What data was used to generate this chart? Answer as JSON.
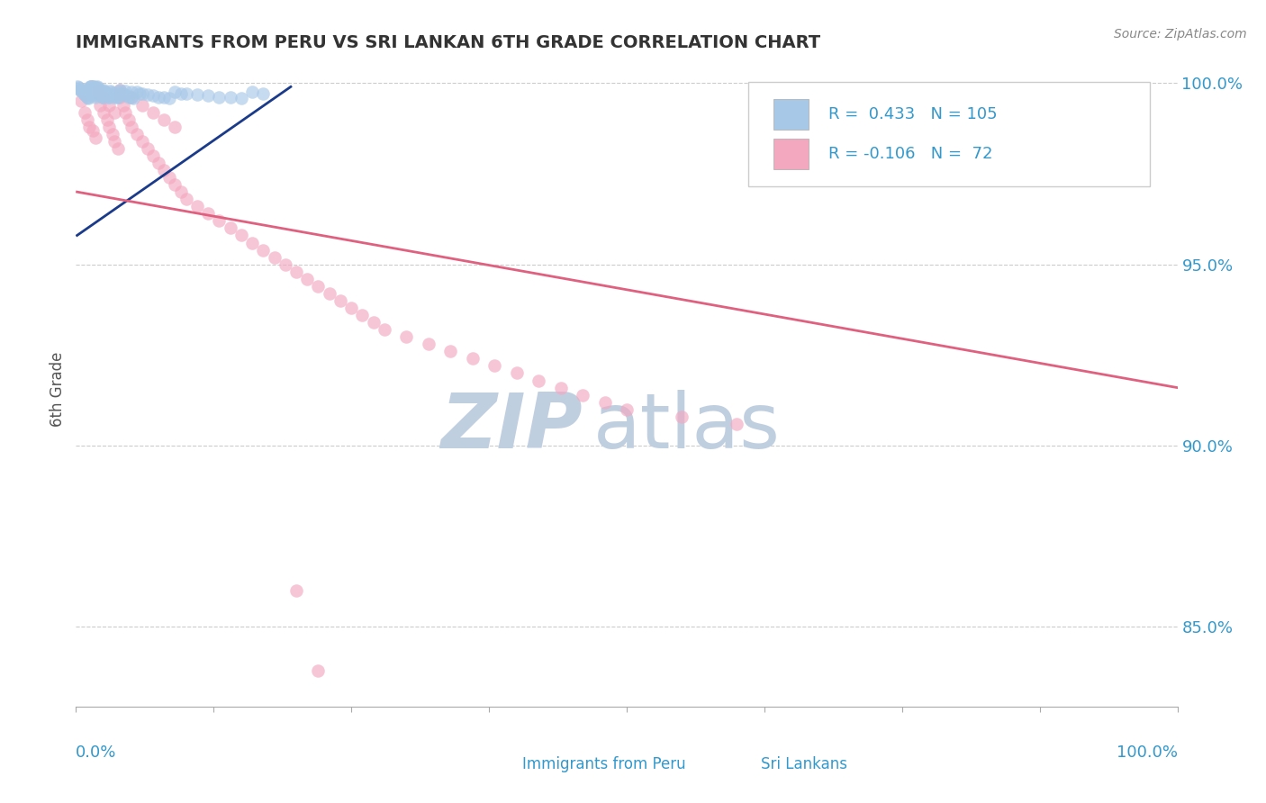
{
  "title": "IMMIGRANTS FROM PERU VS SRI LANKAN 6TH GRADE CORRELATION CHART",
  "source": "Source: ZipAtlas.com",
  "xlabel_bottom_left": "0.0%",
  "xlabel_bottom_right": "100.0%",
  "ylabel_label": "6th Grade",
  "ylabel_ticks": [
    "100.0%",
    "95.0%",
    "90.0%",
    "85.0%"
  ],
  "ylabel_tick_values": [
    1.0,
    0.95,
    0.9,
    0.85
  ],
  "legend_blue_r": "0.433",
  "legend_blue_n": "105",
  "legend_pink_r": "-0.106",
  "legend_pink_n": "72",
  "legend_label_blue": "Immigrants from Peru",
  "legend_label_pink": "Sri Lankans",
  "blue_color": "#a8c8e8",
  "pink_color": "#f4a8c0",
  "blue_line_color": "#1a3a8a",
  "pink_line_color": "#e06080",
  "watermark_zip": "ZIP",
  "watermark_atlas": "atlas",
  "watermark_color_zip": "#c0cfe0",
  "watermark_color_atlas": "#c0cfe0",
  "background_color": "#ffffff",
  "title_color": "#333333",
  "axis_label_color": "#555555",
  "tick_color": "#3399cc",
  "grid_color": "#cccccc",
  "blue_scatter_x": [
    0.001,
    0.002,
    0.003,
    0.004,
    0.005,
    0.005,
    0.006,
    0.007,
    0.008,
    0.008,
    0.009,
    0.01,
    0.01,
    0.011,
    0.011,
    0.012,
    0.012,
    0.013,
    0.013,
    0.014,
    0.014,
    0.015,
    0.015,
    0.015,
    0.016,
    0.016,
    0.017,
    0.017,
    0.018,
    0.018,
    0.019,
    0.019,
    0.02,
    0.02,
    0.02,
    0.021,
    0.021,
    0.022,
    0.022,
    0.023,
    0.023,
    0.024,
    0.024,
    0.025,
    0.025,
    0.026,
    0.026,
    0.027,
    0.028,
    0.028,
    0.029,
    0.03,
    0.031,
    0.032,
    0.033,
    0.034,
    0.035,
    0.036,
    0.037,
    0.038,
    0.039,
    0.04,
    0.042,
    0.044,
    0.046,
    0.048,
    0.05,
    0.052,
    0.055,
    0.058,
    0.06,
    0.065,
    0.07,
    0.075,
    0.08,
    0.085,
    0.09,
    0.095,
    0.1,
    0.11,
    0.12,
    0.13,
    0.14,
    0.15,
    0.16,
    0.17,
    0.04,
    0.045,
    0.05,
    0.015,
    0.016,
    0.017,
    0.018,
    0.019,
    0.02,
    0.022,
    0.024,
    0.026,
    0.028,
    0.03,
    0.032,
    0.034,
    0.013,
    0.014,
    0.015
  ],
  "blue_scatter_y": [
    0.999,
    0.9988,
    0.9985,
    0.9982,
    0.998,
    0.9978,
    0.9975,
    0.9972,
    0.997,
    0.9968,
    0.9965,
    0.9962,
    0.996,
    0.9958,
    0.9985,
    0.9982,
    0.9978,
    0.9975,
    0.9972,
    0.9968,
    0.999,
    0.9988,
    0.9985,
    0.9982,
    0.998,
    0.9975,
    0.997,
    0.9968,
    0.9965,
    0.9962,
    0.999,
    0.9988,
    0.9985,
    0.9982,
    0.998,
    0.9978,
    0.9975,
    0.9972,
    0.997,
    0.9968,
    0.9965,
    0.9962,
    0.996,
    0.998,
    0.9978,
    0.9975,
    0.9972,
    0.997,
    0.9968,
    0.9965,
    0.9962,
    0.996,
    0.9978,
    0.9975,
    0.9972,
    0.997,
    0.9968,
    0.9965,
    0.9962,
    0.996,
    0.9975,
    0.9972,
    0.997,
    0.9968,
    0.9965,
    0.9962,
    0.996,
    0.9958,
    0.9975,
    0.9972,
    0.997,
    0.9968,
    0.9965,
    0.9962,
    0.996,
    0.9958,
    0.9975,
    0.9972,
    0.997,
    0.9968,
    0.9965,
    0.9962,
    0.996,
    0.9958,
    0.9975,
    0.9972,
    0.998,
    0.9978,
    0.9975,
    0.9992,
    0.999,
    0.9988,
    0.9985,
    0.9982,
    0.998,
    0.9978,
    0.9975,
    0.9972,
    0.997,
    0.9968,
    0.9965,
    0.9962,
    0.9992,
    0.999,
    0.9988
  ],
  "pink_scatter_x": [
    0.005,
    0.008,
    0.01,
    0.012,
    0.015,
    0.018,
    0.02,
    0.022,
    0.025,
    0.028,
    0.03,
    0.033,
    0.035,
    0.038,
    0.04,
    0.043,
    0.045,
    0.048,
    0.05,
    0.055,
    0.06,
    0.065,
    0.07,
    0.075,
    0.08,
    0.085,
    0.09,
    0.095,
    0.1,
    0.11,
    0.12,
    0.13,
    0.14,
    0.15,
    0.16,
    0.17,
    0.18,
    0.19,
    0.2,
    0.21,
    0.22,
    0.23,
    0.24,
    0.25,
    0.26,
    0.27,
    0.28,
    0.3,
    0.32,
    0.34,
    0.36,
    0.38,
    0.4,
    0.42,
    0.44,
    0.46,
    0.48,
    0.5,
    0.55,
    0.6,
    0.02,
    0.025,
    0.03,
    0.035,
    0.04,
    0.05,
    0.06,
    0.07,
    0.08,
    0.09,
    0.2,
    0.22
  ],
  "pink_scatter_y": [
    0.995,
    0.992,
    0.99,
    0.988,
    0.987,
    0.985,
    0.997,
    0.994,
    0.992,
    0.99,
    0.988,
    0.986,
    0.984,
    0.982,
    0.996,
    0.994,
    0.992,
    0.99,
    0.988,
    0.986,
    0.984,
    0.982,
    0.98,
    0.978,
    0.976,
    0.974,
    0.972,
    0.97,
    0.968,
    0.966,
    0.964,
    0.962,
    0.96,
    0.958,
    0.956,
    0.954,
    0.952,
    0.95,
    0.948,
    0.946,
    0.944,
    0.942,
    0.94,
    0.938,
    0.936,
    0.934,
    0.932,
    0.93,
    0.928,
    0.926,
    0.924,
    0.922,
    0.92,
    0.918,
    0.916,
    0.914,
    0.912,
    0.91,
    0.908,
    0.906,
    0.998,
    0.996,
    0.994,
    0.992,
    0.998,
    0.996,
    0.994,
    0.992,
    0.99,
    0.988,
    0.86,
    0.838
  ],
  "blue_line_x": [
    0.001,
    0.195
  ],
  "blue_line_y": [
    0.958,
    0.999
  ],
  "pink_line_x": [
    0.001,
    1.0
  ],
  "pink_line_y": [
    0.97,
    0.916
  ],
  "xmin": 0.0,
  "xmax": 1.0,
  "ymin": 0.828,
  "ymax": 1.003,
  "xtick_positions": [
    0.0,
    0.125,
    0.25,
    0.375,
    0.5,
    0.625,
    0.75,
    0.875,
    1.0
  ]
}
